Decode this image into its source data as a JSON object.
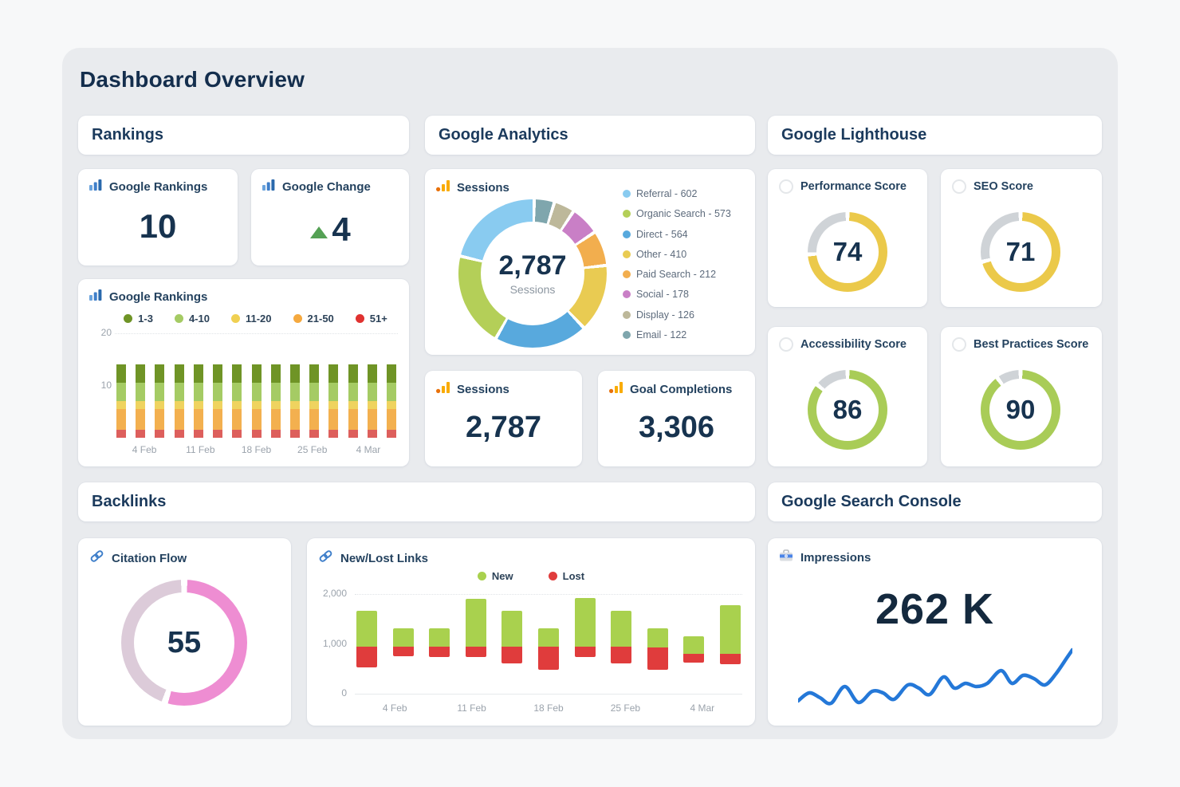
{
  "page_title": "Dashboard Overview",
  "panels": {
    "rankings": "Rankings",
    "analytics": "Google Analytics",
    "lighthouse": "Google Lighthouse",
    "backlinks": "Backlinks",
    "search_console": "Google Search Console"
  },
  "icons": [
    "bar-chart-blue-icon",
    "analytics-bars-orange-icon",
    "up-arrow-icon",
    "lighthouse-circle-icon",
    "chain-link-icon",
    "search-console-icon"
  ],
  "stat_cards": {
    "google_rankings": {
      "label": "Google Rankings",
      "value": "10"
    },
    "google_change": {
      "label": "Google Change",
      "value": "4",
      "direction": "up",
      "arrow_color": "#55a155"
    },
    "sessions": {
      "label": "Sessions",
      "value": "2,787"
    },
    "goal_completions": {
      "label": "Goal Completions",
      "value": "3,306"
    },
    "impressions": {
      "label": "Impressions",
      "value": "262 K"
    }
  },
  "gauges": [
    {
      "label": "Performance Score",
      "value": 74,
      "color": "#ebc94a",
      "track": "#cfd3d7"
    },
    {
      "label": "SEO Score",
      "value": 71,
      "color": "#ebc94a",
      "track": "#cfd3d7"
    },
    {
      "label": "Accessibility Score",
      "value": 86,
      "color": "#a9cc57",
      "track": "#cfd3d7"
    },
    {
      "label": "Best Practices Score",
      "value": 90,
      "color": "#a9cc57",
      "track": "#cfd3d7"
    }
  ],
  "citation_flow": {
    "label": "Citation Flow",
    "value": 55,
    "color": "#ee8dd2",
    "track": "#dccbd9"
  },
  "chart_data": [
    {
      "id": "google-rankings-trend",
      "type": "stacked_bar",
      "title": "Google Rankings",
      "ylim": [
        0,
        20
      ],
      "yticks": [
        {
          "value": 20,
          "label": "20"
        },
        {
          "value": 10,
          "label": "10"
        }
      ],
      "x_labels": [
        "4 Feb",
        "11 Feb",
        "18 Feb",
        "25 Feb",
        "4 Mar"
      ],
      "bar_count": 15,
      "note": "all bars identical; segments listed bottom to top",
      "series": [
        {
          "name": "51+",
          "color": "#dd5f5c",
          "value": 1.5
        },
        {
          "name": "21-50",
          "color": "#f3b04f",
          "value": 4
        },
        {
          "name": "11-20",
          "color": "#efd35f",
          "value": 1.5
        },
        {
          "name": "4-10",
          "color": "#a5cb64",
          "value": 3.5
        },
        {
          "name": "1-3",
          "color": "#6f9426",
          "value": 3.5
        }
      ],
      "legend": [
        {
          "label": "1-3",
          "color": "#6f9426"
        },
        {
          "label": "4-10",
          "color": "#a5cb64"
        },
        {
          "label": "11-20",
          "color": "#f0d052"
        },
        {
          "label": "21-50",
          "color": "#f5a93f"
        },
        {
          "label": "51+",
          "color": "#e03230"
        }
      ]
    },
    {
      "id": "sessions-donut",
      "type": "donut",
      "title": "Sessions",
      "center_value": "2,787",
      "center_label": "Sessions",
      "total": 2787,
      "direction": "counterclockwise-from-top",
      "slices": [
        {
          "label": "Referral",
          "value": 602,
          "color": "#89cbf0"
        },
        {
          "label": "Organic Search",
          "value": 573,
          "color": "#b4cf58"
        },
        {
          "label": "Direct",
          "value": 564,
          "color": "#58a9dd"
        },
        {
          "label": "Other",
          "value": 410,
          "color": "#e9cb52"
        },
        {
          "label": "Paid Search",
          "value": 212,
          "color": "#f2ae4e"
        },
        {
          "label": "Social",
          "value": 178,
          "color": "#c97fc6"
        },
        {
          "label": "Display",
          "value": 126,
          "color": "#bdb89a"
        },
        {
          "label": "Email",
          "value": 122,
          "color": "#7fa6ad"
        }
      ]
    },
    {
      "id": "new-lost-links",
      "type": "floating_stacked_bar",
      "title": "New/Lost Links",
      "ylim": [
        0,
        2000
      ],
      "yticks": [
        {
          "value": 2000,
          "label": "2,000"
        },
        {
          "value": 1000,
          "label": "1,000"
        },
        {
          "value": 0,
          "label": "0"
        }
      ],
      "x_labels": [
        "4 Feb",
        "11 Feb",
        "18 Feb",
        "25 Feb",
        "4 Mar"
      ],
      "legend": [
        {
          "label": "New",
          "color": "#a9d14e"
        },
        {
          "label": "Lost",
          "color": "#e03c3c"
        }
      ],
      "bars": [
        {
          "lost_bottom": 530,
          "split": 950,
          "new_top": 1660
        },
        {
          "lost_bottom": 750,
          "split": 950,
          "new_top": 1310
        },
        {
          "lost_bottom": 730,
          "split": 950,
          "new_top": 1310
        },
        {
          "lost_bottom": 730,
          "split": 950,
          "new_top": 1900
        },
        {
          "lost_bottom": 600,
          "split": 950,
          "new_top": 1660
        },
        {
          "lost_bottom": 480,
          "split": 950,
          "new_top": 1310
        },
        {
          "lost_bottom": 740,
          "split": 950,
          "new_top": 1920
        },
        {
          "lost_bottom": 600,
          "split": 950,
          "new_top": 1660
        },
        {
          "lost_bottom": 480,
          "split": 930,
          "new_top": 1310
        },
        {
          "lost_bottom": 620,
          "split": 800,
          "new_top": 1160
        },
        {
          "lost_bottom": 600,
          "split": 800,
          "new_top": 1780
        }
      ]
    },
    {
      "id": "impressions-trend",
      "type": "line",
      "label": "Impressions",
      "value": "262 K",
      "color": "#2478d8",
      "points": [
        [
          0,
          82
        ],
        [
          4,
          72
        ],
        [
          8,
          78
        ],
        [
          12,
          85
        ],
        [
          17,
          64
        ],
        [
          22,
          84
        ],
        [
          27,
          70
        ],
        [
          31,
          72
        ],
        [
          35,
          80
        ],
        [
          40,
          62
        ],
        [
          44,
          66
        ],
        [
          48,
          74
        ],
        [
          53,
          52
        ],
        [
          57,
          66
        ],
        [
          61,
          60
        ],
        [
          65,
          64
        ],
        [
          69,
          60
        ],
        [
          74,
          44
        ],
        [
          78,
          60
        ],
        [
          82,
          50
        ],
        [
          86,
          54
        ],
        [
          90,
          62
        ],
        [
          94,
          48
        ],
        [
          98,
          28
        ],
        [
          100,
          18
        ]
      ]
    }
  ]
}
